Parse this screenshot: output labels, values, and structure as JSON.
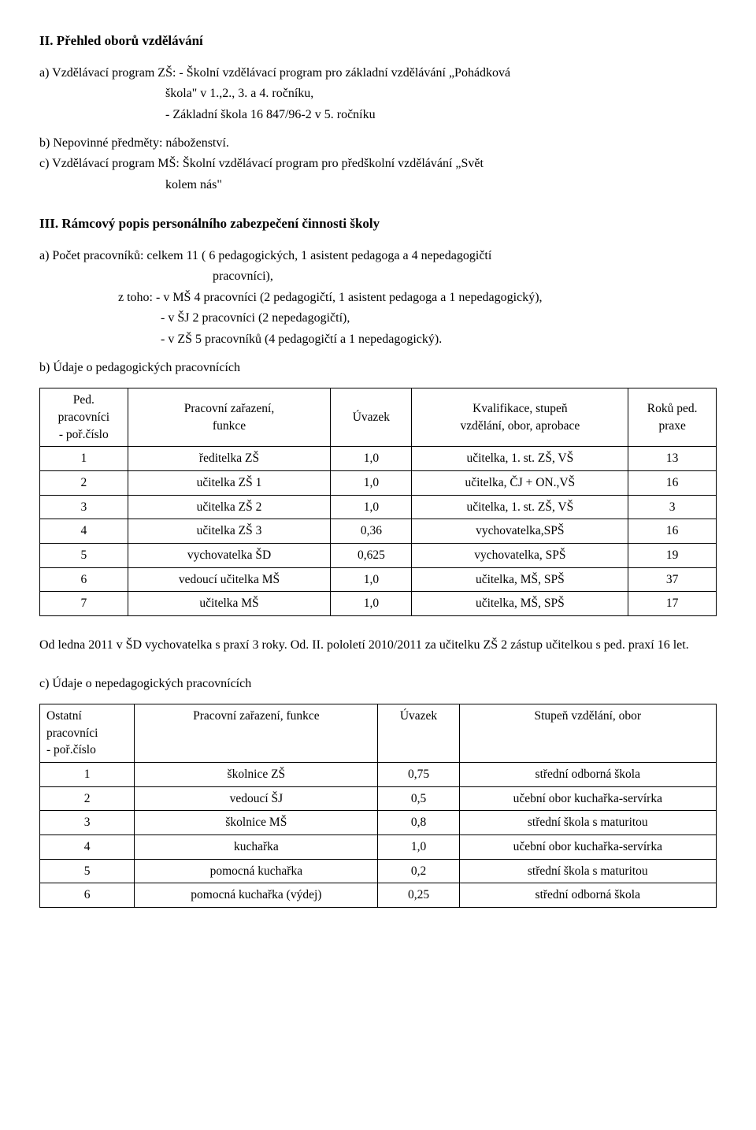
{
  "section2": {
    "heading": "II. Přehled oborů vzdělávání",
    "a_line": "a)  Vzdělávací program ZŠ: - Školní vzdělávací program pro základní vzdělávání „Pohádková",
    "a_indent1": "škola\" v 1.,2., 3. a 4. ročníku,",
    "a_indent2": "-  Základní škola  16 847/96-2 v 5. ročníku",
    "b_line": "b)  Nepovinné předměty: náboženství.",
    "c_line": "c)  Vzdělávací program MŠ: Školní vzdělávací program pro předškolní vzdělávání „Svět",
    "c_indent1": "kolem nás\""
  },
  "section3": {
    "heading": "III. Rámcový popis personálního zabezpečení činnosti školy",
    "a_line": "a)  Počet pracovníků: celkem 11 ( 6 pedagogických, 1 asistent pedagoga a 4 nepedagogičtí",
    "a_indent1": "pracovníci),",
    "a_cont_prefix": "z toho: ",
    "a_cont1": "- v MŠ 4 pracovníci (2 pedagogičtí, 1 asistent pedagoga a 1 nepedagogický),",
    "a_cont2": "- v ŠJ 2 pracovníci (2 nepedagogičtí),",
    "a_cont3": "- v ZŠ 5 pracovníků (4 pedagogičtí a 1 nepedagogický).",
    "b_line": "b) Údaje o pedagogických pracovnících",
    "table1": {
      "headers": {
        "c1a": "Ped. pracovníci",
        "c1b": "- poř.číslo",
        "c2a": "Pracovní zařazení,",
        "c2b": "funkce",
        "c3": "Úvazek",
        "c4a": "Kvalifikace, stupeň",
        "c4b": "vzdělání, obor, aprobace",
        "c5a": "Roků ped.",
        "c5b": "praxe"
      },
      "rows": [
        {
          "n": "1",
          "f": "ředitelka ZŠ",
          "u": "1,0",
          "q": "učitelka, 1. st. ZŠ, VŠ",
          "p": "13"
        },
        {
          "n": "2",
          "f": "učitelka ZŠ 1",
          "u": "1,0",
          "q": "učitelka, ČJ + ON.,VŠ",
          "p": "16"
        },
        {
          "n": "3",
          "f": "učitelka ZŠ 2",
          "u": "1,0",
          "q": "učitelka, 1. st. ZŠ, VŠ",
          "p": "3"
        },
        {
          "n": "4",
          "f": "učitelka ZŠ 3",
          "u": "0,36",
          "q": "vychovatelka,SPŠ",
          "p": "16"
        },
        {
          "n": "5",
          "f": "vychovatelka ŠD",
          "u": "0,625",
          "q": "vychovatelka, SPŠ",
          "p": "19"
        },
        {
          "n": "6",
          "f": "vedoucí učitelka MŠ",
          "u": "1,0",
          "q": "učitelka, MŠ, SPŠ",
          "p": "37"
        },
        {
          "n": "7",
          "f": "učitelka MŠ",
          "u": "1,0",
          "q": "učitelka, MŠ, SPŠ",
          "p": "17"
        }
      ]
    },
    "after_table1": "Od ledna 2011 v ŠD vychovatelka s praxí  3 roky. Od. II. pololetí 2010/2011 za učitelku ZŠ 2 zástup učitelkou s ped. praxí 16 let.",
    "c_line": "c) Údaje o nepedagogických pracovnících",
    "table2": {
      "headers": {
        "c1a": "Ostatní",
        "c1b": "pracovníci",
        "c1c": "- poř.číslo",
        "c2": "Pracovní zařazení, funkce",
        "c3": "Úvazek",
        "c4": "Stupeň vzdělání, obor"
      },
      "rows": [
        {
          "n": "1",
          "f": "školnice ZŠ",
          "u": "0,75",
          "q": "střední odborná škola"
        },
        {
          "n": "2",
          "f": "vedoucí ŠJ",
          "u": "0,5",
          "q": "učební obor kuchařka-servírka"
        },
        {
          "n": "3",
          "f": "školnice MŠ",
          "u": "0,8",
          "q": "střední škola s maturitou"
        },
        {
          "n": "4",
          "f": "kuchařka",
          "u": "1,0",
          "q": "učební obor kuchařka-servírka"
        },
        {
          "n": "5",
          "f": "pomocná kuchařka",
          "u": "0,2",
          "q": "střední škola s maturitou"
        },
        {
          "n": "6",
          "f": "pomocná kuchařka (výdej)",
          "u": "0,25",
          "q": "střední odborná škola"
        }
      ]
    }
  }
}
